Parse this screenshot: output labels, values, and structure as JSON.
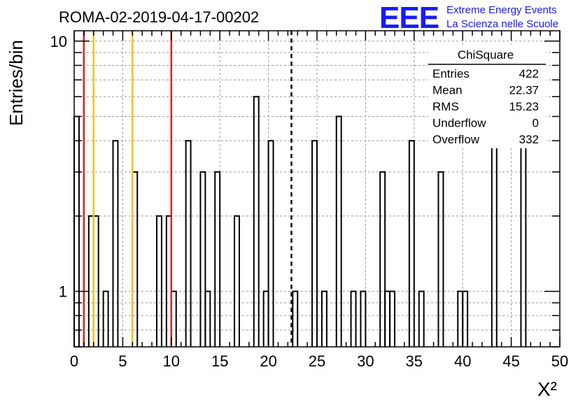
{
  "chart_data": {
    "type": "bar",
    "title": "ROMA-02-2019-04-17-00202",
    "xlabel": "X²",
    "ylabel": "Entries/bin",
    "xlim": [
      0,
      50
    ],
    "ylim": [
      0.6,
      11
    ],
    "yscale": "log",
    "grid": true,
    "x_ticks": [
      "0",
      "5",
      "10",
      "15",
      "20",
      "25",
      "30",
      "35",
      "40",
      "45",
      "50"
    ],
    "y_ticks": [
      "1",
      "10"
    ],
    "bin_width": 0.5,
    "bins": [
      {
        "x": 0.0,
        "value": 5
      },
      {
        "x": 1.5,
        "value": 2
      },
      {
        "x": 2.0,
        "value": 2
      },
      {
        "x": 3.0,
        "value": 1
      },
      {
        "x": 4.0,
        "value": 4
      },
      {
        "x": 6.0,
        "value": 3
      },
      {
        "x": 8.5,
        "value": 2
      },
      {
        "x": 9.5,
        "value": 2
      },
      {
        "x": 10.0,
        "value": 1
      },
      {
        "x": 11.5,
        "value": 4
      },
      {
        "x": 13.0,
        "value": 3
      },
      {
        "x": 13.5,
        "value": 1
      },
      {
        "x": 14.5,
        "value": 3
      },
      {
        "x": 16.5,
        "value": 2
      },
      {
        "x": 18.5,
        "value": 6
      },
      {
        "x": 19.5,
        "value": 1
      },
      {
        "x": 20.0,
        "value": 4
      },
      {
        "x": 22.5,
        "value": 1
      },
      {
        "x": 24.5,
        "value": 4
      },
      {
        "x": 25.5,
        "value": 1
      },
      {
        "x": 27.0,
        "value": 5
      },
      {
        "x": 28.5,
        "value": 1
      },
      {
        "x": 29.5,
        "value": 1
      },
      {
        "x": 31.5,
        "value": 3
      },
      {
        "x": 32.0,
        "value": 1
      },
      {
        "x": 32.5,
        "value": 1
      },
      {
        "x": 34.5,
        "value": 4
      },
      {
        "x": 35.5,
        "value": 1
      },
      {
        "x": 37.5,
        "value": 3
      },
      {
        "x": 39.5,
        "value": 1
      },
      {
        "x": 40.0,
        "value": 1
      },
      {
        "x": 43.0,
        "value": 4
      },
      {
        "x": 46.0,
        "value": 4
      }
    ],
    "reference_lines": [
      {
        "x": 1,
        "color": "#e0201a"
      },
      {
        "x": 10,
        "color": "#e0201a"
      },
      {
        "x": 2,
        "color": "#f2c21a"
      },
      {
        "x": 6,
        "color": "#f2c21a"
      }
    ],
    "mean_line": {
      "x": 22.37,
      "style": "dashed",
      "color": "#000000"
    },
    "stats_box": {
      "title": "ChiSquare",
      "rows": [
        {
          "label": "Entries",
          "value": "422"
        },
        {
          "label": "Mean",
          "value": "22.37"
        },
        {
          "label": "RMS",
          "value": "15.23"
        },
        {
          "label": "Underflow",
          "value": "0"
        },
        {
          "label": "Overflow",
          "value": "332"
        }
      ]
    }
  },
  "logo": {
    "letters": "EEE",
    "line1": "Extreme Energy Events",
    "line2": "La Scienza nelle Scuole",
    "color": "#1a1aff"
  }
}
